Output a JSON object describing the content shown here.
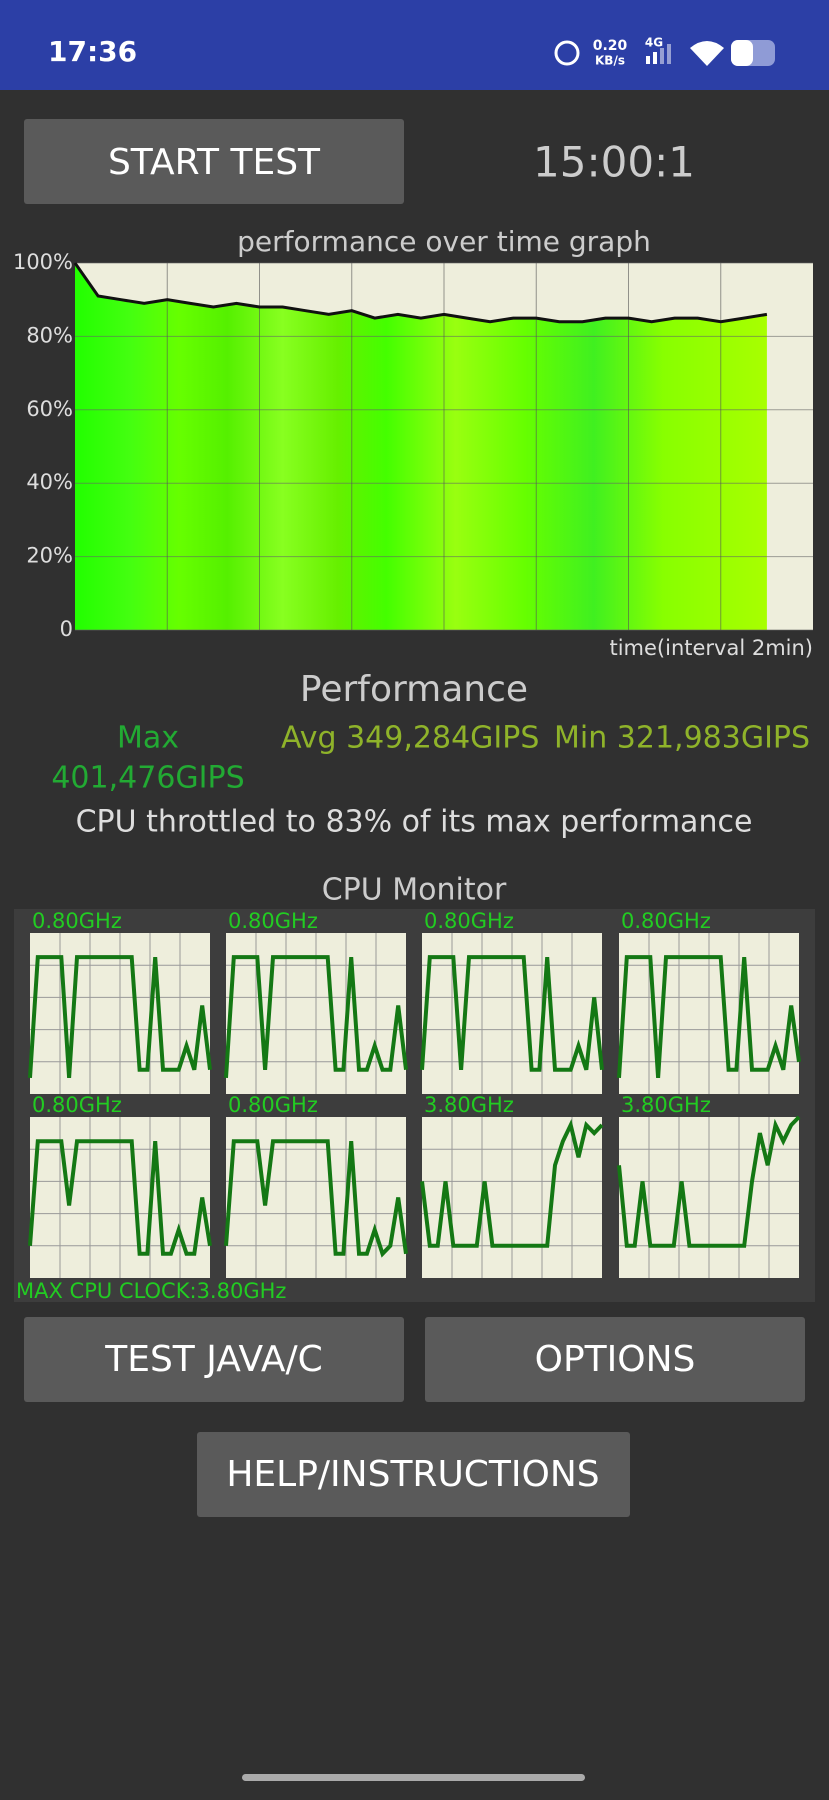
{
  "status_bar": {
    "time": "17:36",
    "speed": "0.20",
    "speed_unit": "KB/s",
    "network": "4G"
  },
  "buttons": {
    "start": "START TEST",
    "test_java": "TEST JAVA/C",
    "options": "OPTIONS",
    "help": "HELP/INSTRUCTIONS"
  },
  "timer": "15:00:1",
  "chart_data": {
    "type": "area",
    "title": "performance over time graph",
    "x_label": "time(interval 2min)",
    "xlim": [
      0,
      16
    ],
    "xgrid": [
      2,
      4,
      6,
      8,
      10,
      12,
      14
    ],
    "ylim": [
      0,
      100
    ],
    "yticks": [
      {
        "value": 100,
        "label": "100%"
      },
      {
        "value": 80,
        "label": "80%"
      },
      {
        "value": 60,
        "label": "60%"
      },
      {
        "value": 40,
        "label": "40%"
      },
      {
        "value": 20,
        "label": "20%"
      },
      0
    ],
    "x": [
      0,
      0.5,
      1,
      1.5,
      2,
      2.5,
      3,
      3.5,
      4,
      4.5,
      5,
      5.5,
      6,
      6.5,
      7,
      7.5,
      8,
      8.5,
      9,
      9.5,
      10,
      10.5,
      11,
      11.5,
      12,
      12.5,
      13,
      13.5,
      14,
      14.5,
      15
    ],
    "values": [
      100,
      91,
      90,
      89,
      90,
      89,
      88,
      89,
      88,
      88,
      87,
      86,
      87,
      85,
      86,
      85,
      86,
      85,
      84,
      85,
      85,
      84,
      84,
      85,
      85,
      84,
      85,
      85,
      84,
      85,
      86
    ],
    "line_color": "#111111",
    "fill_color": "#44ff00",
    "grid": true
  },
  "performance": {
    "title": "Performance",
    "max_label": "Max",
    "max": "401,476GIPS",
    "avg": "Avg 349,284GIPS",
    "min": "Min 321,983GIPS",
    "summary": "CPU throttled to 83% of its max performance"
  },
  "cpu_monitor": {
    "title": "CPU Monitor",
    "ylim": [
      0,
      1
    ],
    "line_color": "#147814",
    "cores": [
      {
        "label": "0.80GHz",
        "values": [
          0.1,
          0.85,
          0.85,
          0.85,
          0.85,
          0.1,
          0.85,
          0.85,
          0.85,
          0.85,
          0.85,
          0.85,
          0.85,
          0.85,
          0.15,
          0.15,
          0.85,
          0.15,
          0.15,
          0.15,
          0.3,
          0.15,
          0.55,
          0.15
        ]
      },
      {
        "label": "0.80GHz",
        "values": [
          0.1,
          0.85,
          0.85,
          0.85,
          0.85,
          0.15,
          0.85,
          0.85,
          0.85,
          0.85,
          0.85,
          0.85,
          0.85,
          0.85,
          0.15,
          0.15,
          0.85,
          0.15,
          0.15,
          0.3,
          0.15,
          0.15,
          0.55,
          0.15
        ]
      },
      {
        "label": "0.80GHz",
        "values": [
          0.15,
          0.85,
          0.85,
          0.85,
          0.85,
          0.15,
          0.85,
          0.85,
          0.85,
          0.85,
          0.85,
          0.85,
          0.85,
          0.85,
          0.15,
          0.15,
          0.85,
          0.15,
          0.15,
          0.15,
          0.3,
          0.15,
          0.6,
          0.15
        ]
      },
      {
        "label": "0.80GHz",
        "values": [
          0.1,
          0.85,
          0.85,
          0.85,
          0.85,
          0.1,
          0.85,
          0.85,
          0.85,
          0.85,
          0.85,
          0.85,
          0.85,
          0.85,
          0.15,
          0.15,
          0.85,
          0.15,
          0.15,
          0.15,
          0.3,
          0.15,
          0.55,
          0.2
        ]
      },
      {
        "label": "0.80GHz",
        "values": [
          0.2,
          0.85,
          0.85,
          0.85,
          0.85,
          0.45,
          0.85,
          0.85,
          0.85,
          0.85,
          0.85,
          0.85,
          0.85,
          0.85,
          0.15,
          0.15,
          0.85,
          0.15,
          0.15,
          0.3,
          0.15,
          0.15,
          0.5,
          0.2
        ]
      },
      {
        "label": "0.80GHz",
        "values": [
          0.2,
          0.85,
          0.85,
          0.85,
          0.85,
          0.45,
          0.85,
          0.85,
          0.85,
          0.85,
          0.85,
          0.85,
          0.85,
          0.85,
          0.15,
          0.15,
          0.85,
          0.15,
          0.15,
          0.3,
          0.15,
          0.2,
          0.5,
          0.15
        ]
      },
      {
        "label": "3.80GHz",
        "values": [
          0.6,
          0.2,
          0.2,
          0.6,
          0.2,
          0.2,
          0.2,
          0.2,
          0.6,
          0.2,
          0.2,
          0.2,
          0.2,
          0.2,
          0.2,
          0.2,
          0.2,
          0.7,
          0.85,
          0.95,
          0.75,
          0.95,
          0.9,
          0.95
        ]
      },
      {
        "label": "3.80GHz",
        "values": [
          0.7,
          0.2,
          0.2,
          0.6,
          0.2,
          0.2,
          0.2,
          0.2,
          0.6,
          0.2,
          0.2,
          0.2,
          0.2,
          0.2,
          0.2,
          0.2,
          0.2,
          0.6,
          0.9,
          0.7,
          0.95,
          0.85,
          0.95,
          1
        ]
      }
    ],
    "max_clock": "MAX CPU CLOCK:3.80GHz"
  }
}
